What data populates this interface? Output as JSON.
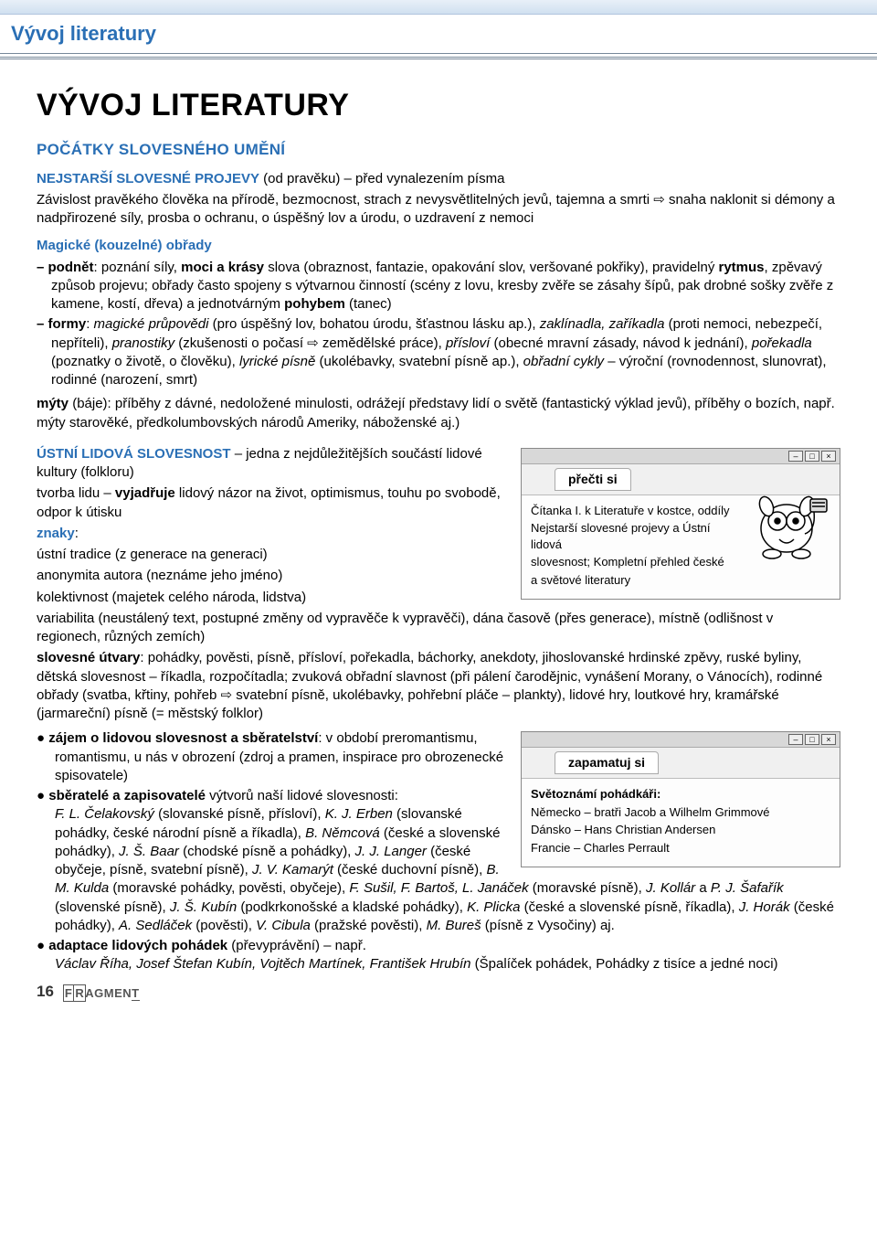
{
  "header": {
    "page_title": "Vývoj literatury"
  },
  "main": {
    "title": "VÝVOJ LITERATURY",
    "section1_title": "POČÁTKY SLOVESNÉHO UMĚNÍ",
    "nejstarsi_label": "NEJSTARŠÍ SLOVESNÉ PROJEVY",
    "nejstarsi_suffix": " (od pravěku) – před vynalezením písma",
    "para1": "Závislost pravěkého člověka na přírodě, bezmocnost, strach z nevysvětlitelných jevů, tajemna a smrti ⇨ snaha naklonit si démony a nadpřirozené síly, prosba o ochranu, o úspěšný lov a úrodu, o uzdravení z nemoci",
    "magicke": "Magické (kouzelné) obřady",
    "podnet_html": "<strong>podnět</strong>: poznání síly, <strong>moci a krásy</strong> slova (obraznost, fantazie, opakování slov, veršované pokřiky), pravidelný <strong>rytmus</strong>, zpěvavý způsob projevu; obřady často spojeny s výtvarnou činností (scény z lovu, kresby zvěře se zásahy šípů, pak drobné sošky zvěře z kamene, kostí, dřeva) a jednotvárným <strong>pohybem</strong> (tanec)",
    "formy_html": "<strong>formy</strong>: <em>magické průpovědi</em> (pro úspěšný lov, bohatou úrodu, šťastnou lásku ap.), <em>zaklínadla, zaříkadla</em> (proti nemoci, nebezpečí, nepříteli), <em>pranostiky</em> (zkušenosti o počasí ⇨ zemědělské práce), <em>přísloví</em> (obecné mravní zásady, návod k jednání), <em>pořekadla</em> (poznatky o životě, o člověku), <em>lyrické písně</em> (ukolébavky, svatební písně ap.), <em>obřadní cykly</em> – výroční (rovnodennost, slunovrat), rodinné (narození, smrt)",
    "myty_html": "<strong>mýty</strong> (báje): příběhy z dávné, nedoložené minulosti, odrážejí představy lidí o světě (fantastický výklad jevů), příběhy o bozích, např. mýty starověké, předkolumbovských národů Ameriky, náboženské aj.)",
    "ustni_label": "ÚSTNÍ LIDOVÁ SLOVESNOST",
    "ustni_suffix": " – jedna z nejdůležitějších součástí lidové kultury (folkloru)",
    "tvorba_html": "tvorba lidu – <strong>vyjadřuje</strong> lidový názor na život, optimismus, touhu po svobodě, odpor k útisku",
    "znaky_label": "znaky",
    "znaky_lines": [
      "ústní tradice (z generace na generaci)",
      "anonymita autora (neznáme jeho jméno)",
      "kolektivnost (majetek celého národa, lidstva)",
      "variabilita (neustálený text, postupné změny od vypravěče k vypravěči), dána časově (přes generace), místně (odlišnost v regionech, různých zemích)"
    ],
    "slovesne_html": "<strong>slovesné útvary</strong>: pohádky, pověsti, písně, přísloví, pořekadla, báchorky, anekdoty, jihoslovanské hrdinské zpěvy, ruské byliny, dětská slovesnost – říkadla, rozpočítadla; zvuková obřadní slavnost (při pálení čarodějnic, vynášení Morany, o Vánocích), rodinné obřady (svatba, křtiny, pohřeb ⇨ svatební písně, ukolébavky, pohřební pláče – plankty), lidové hry, loutkové hry, kramářské (jarmareční) písně (= městský folklor)",
    "bullets": {
      "zajem_html": "<strong>zájem o lidovou slovesnost a sběratelství</strong>: v období preromantismu, romantismu, u nás v obrození (zdroj a pramen, inspirace pro obrozenecké spisovatele)",
      "sberatele_html": "<strong>sběratelé a zapisovatelé</strong> výtvorů naší lidové slovesnosti:<br><em>F. L. Čelakovský</em> (slovanské písně, přísloví), <em>K. J. Erben</em> (slovanské pohádky, české národní písně a říkadla), <em>B. Němcová</em> (české a slovenské pohádky), <em>J. Š. Baar</em> (chodské písně a pohádky), <em>J. J. Langer</em> (české obyčeje, písně, svatební písně), <em>J. V. Kamarýt</em> (české duchovní písně), <em>B. M. Kulda</em> (moravské pohádky, pověsti, obyčeje), <em>F. Sušil, F. Bartoš, L. Janáček</em> (moravské písně), <em>J. Kollár</em> a <em>P. J. Šafařík</em> (slovenské písně), <em>J. Š. Kubín</em> (podkrkonošské a kladské pohádky), <em>K. Plicka</em> (české a slovenské písně, říkadla), <em>J. Horák</em> (české pohádky), <em>A. Sedláček</em> (pověsti), <em>V. Cibula</em> (pražské pověsti), <em>M. Bureš</em> (písně z Vysočiny) aj.",
      "adaptace_html": "<strong>adaptace lidových pohádek</strong> (převyprávění) – např.<br><em>Václav Říha, Josef Štefan Kubín, Vojtěch Martínek, František Hrubín</em> (Špalíček pohádek, Pohádky z tisíce a jedné noci)"
    }
  },
  "precti_box": {
    "tab": "přečti si",
    "line1": "Čítanka I. k Literatuře v kostce, oddíly",
    "line2": "Nejstarší slovesné projevy a Ústní lidová",
    "line3": "slovesnost; Kompletní přehled české",
    "line4": "a světové literatury"
  },
  "zapamatuj_box": {
    "tab": "zapamatuj si",
    "title": "Světoznámí pohádkáři:",
    "line1": "Německo – bratři Jacob a Wilhelm Grimmové",
    "line2": "Dánsko – Hans Christian Andersen",
    "line3": "Francie – Charles Perrault"
  },
  "footer": {
    "page_number": "16",
    "publisher": "FRAGMENT"
  },
  "colors": {
    "heading_blue": "#2a6fb5",
    "text": "#000000",
    "box_border": "#888888"
  }
}
